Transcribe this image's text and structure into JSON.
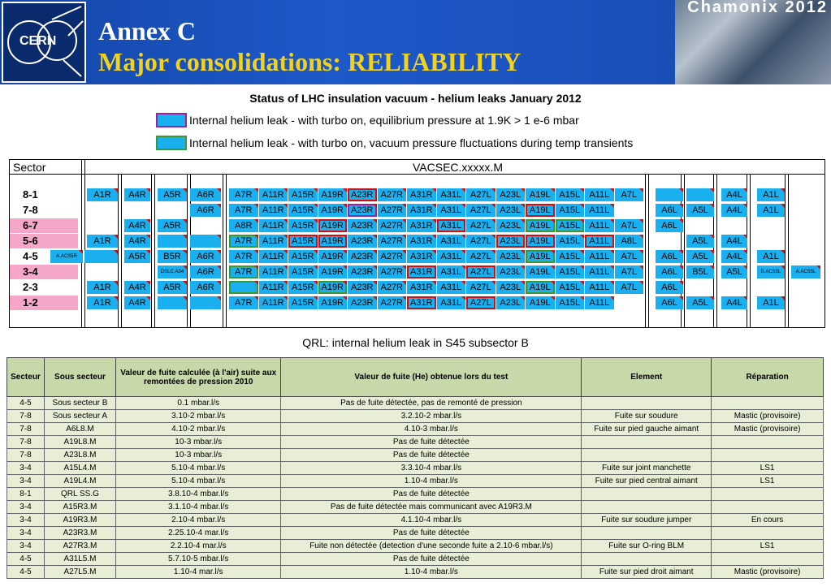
{
  "header": {
    "logo_text": "CERN",
    "line1": "Annex C",
    "line2": "Major consolidations: RELIABILITY",
    "event": "Chamonix 2012"
  },
  "vacuum": {
    "title": "Status of LHC insulation vacuum -  helium leaks January 2012",
    "legend": [
      {
        "text": "Internal helium leak - with turbo on, equilibrium pressure at 1.9K > 1 e-6 mbar",
        "color": "#a020a0"
      },
      {
        "text": "Internal helium leak - with turbo on, vacuum pressure fluctuations during temp transients",
        "color": "#3a9a30"
      }
    ],
    "sector_header": "Sector",
    "vacsec_header": "VACSEC.xxxxx.M",
    "sectors": [
      "8-1",
      "7-8",
      "6-7",
      "5-6",
      "4-5",
      "3-4",
      "2-3",
      "1-2"
    ],
    "pink_sectors": [
      "6-7",
      "5-6",
      "3-4",
      "1-2"
    ],
    "mid_labels": [
      "A7R",
      "A11R",
      "A15R",
      "A19R",
      "A23R",
      "A27R",
      "A31R",
      "A31L",
      "A27L",
      "A23L",
      "A19L",
      "A15L",
      "A11L",
      "A7L"
    ],
    "rows": [
      {
        "left": [
          {
            "c": 1,
            "t": "A1R"
          },
          {
            "c": 2,
            "t": "A4R"
          },
          {
            "c": 3,
            "t": "A5R"
          },
          {
            "c": 4,
            "t": "A6R"
          }
        ],
        "mid": {
          "from": 0,
          "to": 13,
          "labels": [
            "A7R",
            "A11R",
            "A15R",
            "A19R",
            "A23R",
            "A27R",
            "A31R",
            "A31L",
            "A27L",
            "A23L",
            "A19L",
            "A15L",
            "A11L",
            "A7L"
          ],
          "red": [
            4
          ],
          "purple": [],
          "green": []
        },
        "right": [
          {
            "c": 5,
            "t": ""
          },
          {
            "c": 6,
            "t": ""
          },
          {
            "c": 7,
            "t": "A4L"
          },
          {
            "c": 8,
            "t": "A1L"
          }
        ]
      },
      {
        "left": [
          {
            "c": 4,
            "t": "A6R"
          }
        ],
        "mid": {
          "from": 0,
          "to": 12,
          "labels": [
            "A7R",
            "A11R",
            "A15R",
            "A19R",
            "A23R",
            "A27R",
            "A31R",
            "A31L",
            "A27L",
            "A23L",
            "A19L",
            "A15L",
            "A11L"
          ],
          "red": [
            10
          ],
          "purple": [
            4
          ],
          "green": []
        },
        "right": [
          {
            "c": 5,
            "t": "A6L"
          },
          {
            "c": 6,
            "t": "A5L"
          },
          {
            "c": 7,
            "t": "A4L"
          },
          {
            "c": 8,
            "t": "A1L"
          }
        ]
      },
      {
        "left": [
          {
            "c": 2,
            "t": "A4R"
          },
          {
            "c": 3,
            "t": "A5R"
          }
        ],
        "mid": {
          "from": 0,
          "to": 13,
          "labels": [
            "A8R",
            "A11R",
            "A15R",
            "A19R",
            "A23R",
            "A27R",
            "A31R",
            "A31L",
            "A27L",
            "A23L",
            "A19L",
            "A15L",
            "A11L",
            "A7L"
          ],
          "red": [
            3,
            7,
            11
          ],
          "purple": [],
          "green": [
            10,
            11
          ]
        },
        "right": [
          {
            "c": 5,
            "t": "A6L"
          }
        ]
      },
      {
        "left": [
          {
            "c": 1,
            "t": "A1R"
          },
          {
            "c": 2,
            "t": "A4R"
          },
          {
            "c": 3,
            "t": ""
          },
          {
            "c": 4,
            "t": ""
          }
        ],
        "mid": {
          "from": 0,
          "to": 13,
          "labels": [
            "A7R",
            "A11R",
            "A15R",
            "A19R",
            "A23R",
            "A27R",
            "A31R",
            "A31L",
            "A27L",
            "A23L",
            "A19L",
            "A15L",
            "A11L",
            "A8L"
          ],
          "red": [
            2,
            3,
            9,
            10,
            12
          ],
          "purple": [],
          "green": [
            0
          ]
        },
        "right": [
          {
            "c": 6,
            "t": "A5L"
          },
          {
            "c": 7,
            "t": "A4L"
          }
        ]
      },
      {
        "left": [
          {
            "c": -1,
            "t": "A.ACS5R"
          },
          {
            "c": 0,
            "t": "B.ACS5R"
          },
          {
            "c": 1,
            "t": ""
          },
          {
            "c": 2,
            "t": "A5R"
          },
          {
            "c": 3,
            "t": "B5R"
          },
          {
            "c": 4,
            "t": "A6R"
          }
        ],
        "mid": {
          "from": 0,
          "to": 13,
          "labels": [
            "A7R",
            "A11R",
            "A15R",
            "A19R",
            "A23R",
            "A27R",
            "A31R",
            "A31L",
            "A27L",
            "A23L",
            "A19L",
            "A15L",
            "A11L",
            "A7L"
          ],
          "red": [],
          "purple": [],
          "green": [
            10
          ]
        },
        "right": [
          {
            "c": 5,
            "t": "A6L"
          },
          {
            "c": 6,
            "t": "A5L"
          },
          {
            "c": 7,
            "t": "A4L"
          },
          {
            "c": 8,
            "t": "A1L"
          }
        ]
      },
      {
        "left": [
          {
            "c": 3,
            "t": "DSLC.A34"
          },
          {
            "c": 4,
            "t": "A6R"
          }
        ],
        "mid": {
          "from": 0,
          "to": 13,
          "labels": [
            "A7R",
            "A11R",
            "A15R",
            "A19R",
            "A23R",
            "A27R",
            "A31R",
            "A31L",
            "A27L",
            "A23L",
            "A19L",
            "A15L",
            "A11L",
            "A7L"
          ],
          "red": [
            6,
            8
          ],
          "purple": [],
          "green": [
            0
          ]
        },
        "right": [
          {
            "c": 5,
            "t": "A6L"
          },
          {
            "c": 6,
            "t": "B5L"
          },
          {
            "c": 7,
            "t": "A5L"
          },
          {
            "c": 8,
            "t": "B.ACS5L"
          },
          {
            "c": 9,
            "t": "A.ACS5L"
          }
        ]
      },
      {
        "left": [
          {
            "c": 1,
            "t": "A1R"
          },
          {
            "c": 2,
            "t": "A4R"
          },
          {
            "c": 3,
            "t": "A5R"
          },
          {
            "c": 4,
            "t": "A6R"
          }
        ],
        "mid": {
          "from": 0,
          "to": 13,
          "labels": [
            "",
            "A11R",
            "A15R",
            "A19R",
            "A23R",
            "A27R",
            "A31R",
            "A31L",
            "A27L",
            "A23L",
            "A19L",
            "A15L",
            "A11L",
            "A7L"
          ],
          "red": [],
          "purple": [],
          "green": [
            0,
            3,
            10
          ]
        },
        "right": [
          {
            "c": 5,
            "t": "A6L"
          }
        ]
      },
      {
        "left": [
          {
            "c": 1,
            "t": "A1R"
          },
          {
            "c": 2,
            "t": "A4R"
          },
          {
            "c": 3,
            "t": ""
          },
          {
            "c": 4,
            "t": ""
          }
        ],
        "mid": {
          "from": 0,
          "to": 12,
          "labels": [
            "A7R",
            "A11R",
            "A15R",
            "A19R",
            "A23R",
            "A27R",
            "A31R",
            "A31L",
            "A27L",
            "A23L",
            "A19L",
            "A15L",
            "A11L"
          ],
          "red": [
            6,
            8
          ],
          "purple": [],
          "green": []
        },
        "right": [
          {
            "c": 5,
            "t": "A6L"
          },
          {
            "c": 6,
            "t": "A5L"
          },
          {
            "c": 7,
            "t": "A4L"
          },
          {
            "c": 8,
            "t": "A1L"
          }
        ]
      }
    ],
    "qrl_note": "QRL: internal  helium leak in S45 subsector B"
  },
  "report": {
    "headers": [
      "Secteur",
      "Sous secteur",
      "Valeur de fuite calculée (à l'air) suite aux remontées de pression 2010",
      "Valeur de fuite (He) obtenue lors du test",
      "Element",
      "Réparation"
    ],
    "rows": [
      [
        "4-5",
        "Sous secteur B",
        "0.1 mbar.l/s",
        "Pas de fuite détectée, pas de remonté de pression",
        "",
        ""
      ],
      [
        "7-8",
        "Sous secteur A",
        "3.10-2 mbar.l/s",
        "3.2.10-2 mbar.l/s",
        "Fuite sur soudure",
        "Mastic (provisoire)"
      ],
      [
        "7-8",
        "A6L8.M",
        "4.10-2 mbar.l/s",
        "4.10-3 mbar.l/s",
        "Fuite sur pied gauche aimant",
        "Mastic (provisoire)"
      ],
      [
        "7-8",
        "A19L8.M",
        "10-3 mbar.l/s",
        "Pas de fuite détectée",
        "",
        ""
      ],
      [
        "7-8",
        "A23L8.M",
        "10-3 mbar.l/s",
        "Pas de fuite détectée",
        "",
        ""
      ],
      [
        "3-4",
        "A15L4.M",
        "5.10-4 mbar.l/s",
        "3.3.10-4 mbar.l/s",
        "Fuite sur joint manchette",
        "LS1"
      ],
      [
        "3-4",
        "A19L4.M",
        "5.10-4 mbar.l/s",
        "1.10-4 mbar.l/s",
        "Fuite sur pied central aimant",
        "LS1"
      ],
      [
        "8-1",
        "QRL SS.G",
        "3.8.10-4 mbar.l/s",
        "Pas de fuite détectée",
        "",
        ""
      ],
      [
        "3-4",
        "A15R3.M",
        "3.1.10-4 mbar.l/s",
        "Pas de fuite détectée mais communicant avec A19R3.M",
        "",
        ""
      ],
      [
        "3-4",
        "A19R3.M",
        "2.10-4 mbar.l/s",
        "4.1.10-4 mbar.l/s",
        "Fuite sur soudure jumper",
        "En cours"
      ],
      [
        "3-4",
        "A23R3.M",
        "2.25.10-4 mar.l/s",
        "Pas de fuite détectée",
        "",
        ""
      ],
      [
        "3-4",
        "A27R3.M",
        "2.2.10-4 mar.l/s",
        "Fuite non détectée (detection d'une seconde fuite a 2.10-6 mbar.l/s)",
        "Fuite sur O-ring BLM",
        "LS1"
      ],
      [
        "4-5",
        "A31L5.M",
        "5.7.10-5 mbar.l/s",
        "Pas de fuite détectée",
        "",
        ""
      ],
      [
        "4-5",
        "A27L5.M",
        "1.10-4 mar.l/s",
        "1.10-4 mbar.l/s",
        "Fuite sur pied droit aimant",
        "Mastic (provisoire)"
      ]
    ]
  }
}
